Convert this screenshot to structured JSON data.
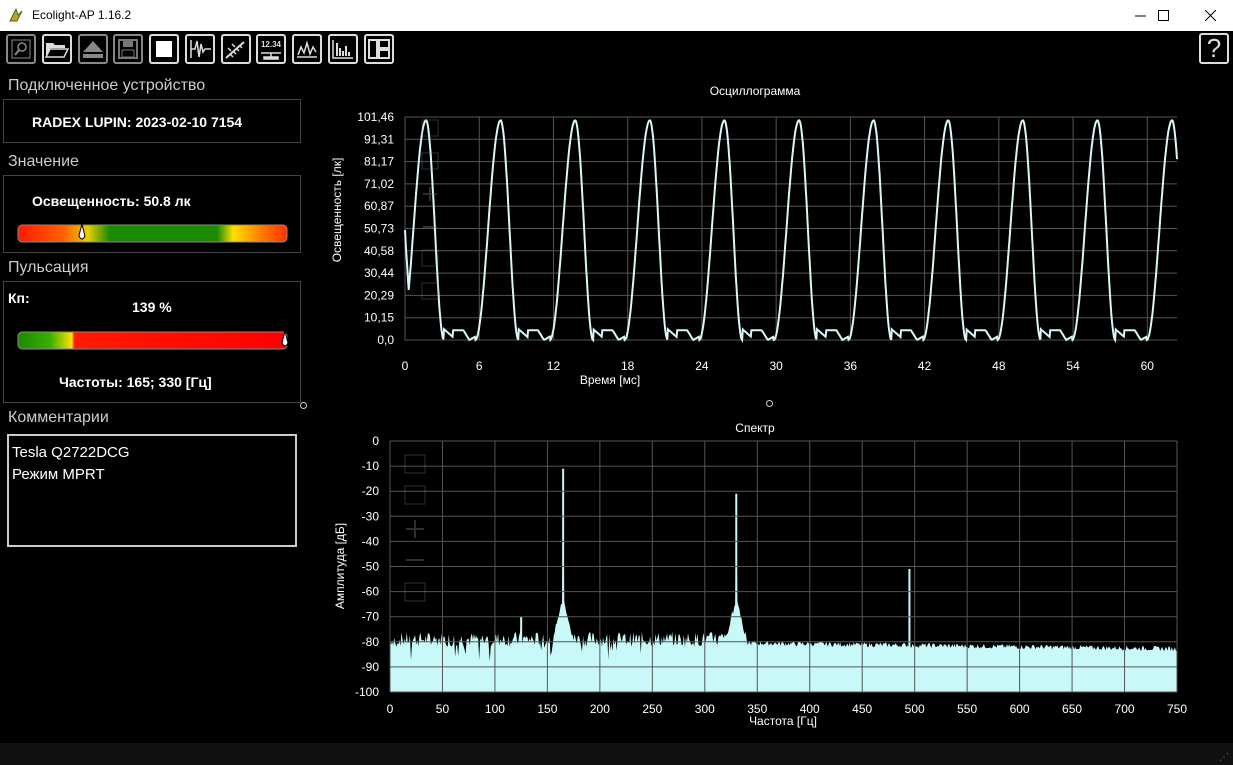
{
  "window": {
    "title": "Ecolight-AP 1.16.2",
    "minimize": "—",
    "maximize": "☐",
    "close": "✕"
  },
  "toolbar": {
    "buttons": [
      {
        "name": "search-button",
        "icon": "magnifier-icon"
      },
      {
        "name": "open-button",
        "icon": "folder-icon"
      },
      {
        "name": "eject-button",
        "icon": "eject-icon"
      },
      {
        "name": "save-button",
        "icon": "floppy-icon"
      },
      {
        "name": "stop-button",
        "icon": "stop-icon"
      },
      {
        "name": "oscillogram-button",
        "icon": "waveform-icon"
      },
      {
        "name": "measure-button",
        "icon": "ruler-icon"
      },
      {
        "name": "value-button",
        "icon": "numeric-display-icon",
        "label": "12.34"
      },
      {
        "name": "signal-button",
        "icon": "signal-icon"
      },
      {
        "name": "histogram-button",
        "icon": "histogram-icon"
      },
      {
        "name": "layout-button",
        "icon": "layout-icon"
      }
    ],
    "help": "?"
  },
  "device": {
    "section_title": "Подключенное устройство",
    "name": "RADEX LUPIN: 2023-02-10 7154"
  },
  "value": {
    "section_title": "Значение",
    "label": "Освещенность: 50.8 лк",
    "gauge_fraction": 0.34
  },
  "pulsation": {
    "section_title": "Пульсация",
    "kp_label": "Кп:",
    "percent": "139 %",
    "frequencies": "Частоты: 165; 330 [Гц]",
    "gauge_fraction": 1.0
  },
  "comments": {
    "section_title": "Комментарии",
    "lines": [
      "Tesla Q2722DCG",
      "Режим MPRT"
    ]
  },
  "colors": {
    "trace": "#d8f8f8",
    "spectrum": "#c8f8f8",
    "grid": "#555555",
    "border": "#444444"
  },
  "chart_data": [
    {
      "type": "line",
      "title": "Осциллограмма",
      "xlabel": "Время [мс]",
      "ylabel": "Освещенность [лк]",
      "xlim": [
        0,
        62.4
      ],
      "ylim": [
        0,
        101.46
      ],
      "x_ticks": [
        "0",
        "6",
        "12",
        "18",
        "24",
        "30",
        "36",
        "42",
        "48",
        "54",
        "60"
      ],
      "y_ticks": [
        "0,0",
        "10,15",
        "20,29",
        "30,44",
        "40,58",
        "50,73",
        "60,87",
        "71,02",
        "81,17",
        "91,31",
        "101,46"
      ],
      "period_ms": 6.03,
      "peak_value": 101.46,
      "trough_value": 0.0,
      "peaks_ms": [
        1.7,
        7.7,
        13.8,
        19.8,
        25.8,
        31.8,
        37.9,
        43.9,
        49.9,
        56.0,
        62.0
      ]
    },
    {
      "type": "bar",
      "title": "Спектр",
      "xlabel": "Частота [Гц]",
      "ylabel": "Амплитуда [дБ]",
      "xlim": [
        0,
        750
      ],
      "ylim": [
        -100,
        0
      ],
      "x_ticks": [
        "0",
        "50",
        "100",
        "150",
        "200",
        "250",
        "300",
        "350",
        "400",
        "450",
        "500",
        "550",
        "600",
        "650",
        "700",
        "750"
      ],
      "y_ticks": [
        "0",
        "-10",
        "-20",
        "-30",
        "-40",
        "-50",
        "-60",
        "-70",
        "-80",
        "-90",
        "-100"
      ],
      "noise_floor_db": -80,
      "peaks": [
        {
          "freq": 165,
          "db": -11
        },
        {
          "freq": 330,
          "db": -21
        },
        {
          "freq": 495,
          "db": -51
        },
        {
          "freq": 125,
          "db": -70
        }
      ]
    }
  ]
}
